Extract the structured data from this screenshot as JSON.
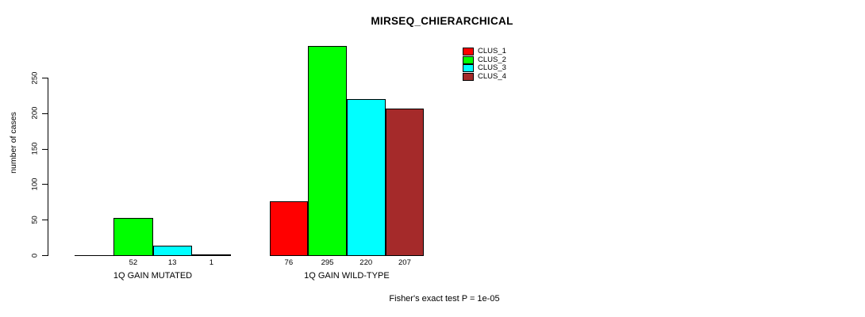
{
  "title": "MIRSEQ_CHIERARCHICAL",
  "y_axis": {
    "label": "number of cases"
  },
  "footer": "Fisher's exact test P = 1e-05",
  "legend": {
    "items": [
      {
        "label": "CLUS_1",
        "color": "#FF0000"
      },
      {
        "label": "CLUS_2",
        "color": "#00FF00"
      },
      {
        "label": "CLUS_3",
        "color": "#00FFFF"
      },
      {
        "label": "CLUS_4",
        "color": "#A52A2A"
      }
    ]
  },
  "chart_data": {
    "type": "bar",
    "title": "MIRSEQ_CHIERARCHICAL",
    "xlabel": "",
    "ylabel": "number of cases",
    "ylim": [
      0,
      295
    ],
    "yticks": [
      0,
      50,
      100,
      150,
      200,
      250
    ],
    "grid": false,
    "legend_position": "top-right",
    "series": [
      "CLUS_1",
      "CLUS_2",
      "CLUS_3",
      "CLUS_4"
    ],
    "colors": [
      "#FF0000",
      "#00FF00",
      "#00FFFF",
      "#A52A2A"
    ],
    "categories": [
      "1Q GAIN MUTATED",
      "1Q GAIN WILD-TYPE"
    ],
    "groups": [
      {
        "label": "1Q GAIN MUTATED",
        "values": [
          null,
          52,
          13,
          1
        ],
        "value_labels": [
          "",
          "52",
          "13",
          "1"
        ]
      },
      {
        "label": "1Q GAIN WILD-TYPE",
        "values": [
          76,
          295,
          220,
          207
        ],
        "value_labels": [
          "76",
          "295",
          "220",
          "207"
        ]
      }
    ],
    "annotation": "Fisher's exact test P = 1e-05"
  }
}
